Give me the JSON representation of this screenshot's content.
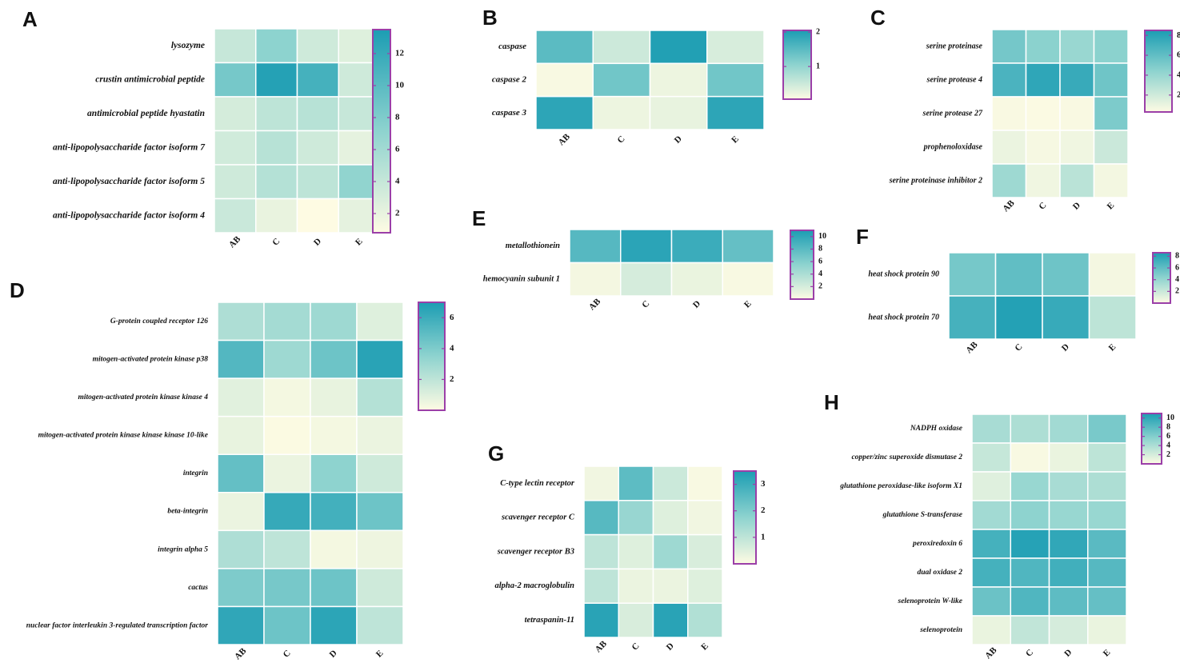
{
  "colors": {
    "low": "#fefbe3",
    "mid": "#8ed3cf",
    "high": "#1c9db3",
    "cell_border": "#ffffff",
    "legend_border": "#9b3fa8"
  },
  "chart_data": [
    {
      "panel": "A",
      "type": "heatmap",
      "categories": [
        "AB",
        "C",
        "D",
        "E"
      ],
      "rows": [
        "lysozyme",
        "crustin antimicrobial peptide",
        "antimicrobial peptide hyastatin",
        "anti-lipopolysaccharide factor isoform 7",
        "anti-lipopolysaccharide factor isoform 5",
        "anti-lipopolysaccharide factor isoform 4"
      ],
      "values": [
        [
          4.0,
          7.2,
          3.5,
          2.6
        ],
        [
          8.5,
          13.0,
          11.2,
          3.5
        ],
        [
          3.2,
          4.5,
          4.8,
          4.0
        ],
        [
          3.4,
          4.8,
          3.5,
          2.2
        ],
        [
          3.5,
          5.0,
          4.5,
          7.0
        ],
        [
          3.8,
          2.0,
          0.8,
          2.2
        ]
      ],
      "colorbar_ticks": [
        2,
        4,
        6,
        8,
        10,
        12
      ],
      "colorbar_range": [
        0.8,
        13.5
      ]
    },
    {
      "panel": "B",
      "type": "heatmap",
      "categories": [
        "AB",
        "C",
        "D",
        "E"
      ],
      "rows": [
        "caspase",
        "caspase 2",
        "caspase 3"
      ],
      "values": [
        [
          1.5,
          0.5,
          2.0,
          0.4
        ],
        [
          0.1,
          1.3,
          0.2,
          1.3
        ],
        [
          1.9,
          0.2,
          0.25,
          1.9
        ]
      ],
      "colorbar_ticks": [
        1,
        2
      ],
      "colorbar_range": [
        0.05,
        2.05
      ]
    },
    {
      "panel": "C",
      "type": "heatmap",
      "categories": [
        "AB",
        "C",
        "D",
        "E"
      ],
      "rows": [
        "serine proteinase",
        "serine protease 4",
        "serine protease 27",
        "prophenoloxidase",
        "serine proteinase inhibitor 2"
      ],
      "values": [
        [
          5.3,
          4.5,
          4.0,
          4.5
        ],
        [
          6.8,
          7.8,
          7.5,
          5.5
        ],
        [
          0.5,
          0.4,
          0.5,
          5.0
        ],
        [
          1.0,
          0.6,
          0.8,
          2.2
        ],
        [
          3.8,
          0.8,
          2.8,
          0.7
        ]
      ],
      "colorbar_ticks": [
        2,
        4,
        6,
        8
      ],
      "colorbar_range": [
        0.3,
        8.5
      ]
    },
    {
      "panel": "D",
      "type": "heatmap",
      "categories": [
        "AB",
        "C",
        "D",
        "E"
      ],
      "rows": [
        "G-protein coupled receptor 126",
        "mitogen-activated protein kinase p38",
        "mitogen-activated protein kinase kinase 4",
        "mitogen-activated protein kinase kinase kinase 10-like",
        "integrin",
        "beta-integrin",
        "integrin alpha 5",
        "cactus",
        "nuclear factor interleukin 3-regulated transcription factor"
      ],
      "values": [
        [
          2.5,
          2.8,
          3.0,
          1.0
        ],
        [
          5.3,
          3.0,
          4.5,
          6.6
        ],
        [
          0.9,
          0.3,
          0.7,
          2.3
        ],
        [
          0.7,
          0.1,
          0.3,
          0.6
        ],
        [
          4.8,
          0.6,
          3.5,
          1.5
        ],
        [
          0.6,
          6.2,
          5.8,
          4.5
        ],
        [
          2.5,
          2.0,
          0.3,
          0.5
        ],
        [
          4.0,
          4.2,
          4.5,
          1.5
        ],
        [
          6.4,
          4.5,
          6.5,
          2.0
        ]
      ],
      "colorbar_ticks": [
        2,
        4,
        6
      ],
      "colorbar_range": [
        0,
        7.0
      ]
    },
    {
      "panel": "E",
      "type": "heatmap",
      "categories": [
        "AB",
        "C",
        "D",
        "E"
      ],
      "rows": [
        "metallothionein",
        "hemocyanin subunit 1"
      ],
      "values": [
        [
          8.2,
          10.3,
          9.5,
          7.5
        ],
        [
          0.5,
          2.0,
          1.0,
          0.3
        ]
      ],
      "colorbar_ticks": [
        2,
        4,
        6,
        8,
        10
      ],
      "colorbar_range": [
        0,
        11.0
      ]
    },
    {
      "panel": "F",
      "type": "heatmap",
      "categories": [
        "AB",
        "C",
        "D",
        "E"
      ],
      "rows": [
        "heat shock protein 90",
        "heat shock protein 70"
      ],
      "values": [
        [
          5.2,
          6.0,
          5.5,
          0.4
        ],
        [
          7.0,
          8.3,
          7.6,
          2.5
        ]
      ],
      "colorbar_ticks": [
        2,
        4,
        6,
        8
      ],
      "colorbar_range": [
        0,
        8.6
      ]
    },
    {
      "panel": "G",
      "type": "heatmap",
      "categories": [
        "AB",
        "C",
        "D",
        "E"
      ],
      "rows": [
        "C-type lectin receptor",
        "scavenger receptor C",
        "scavenger receptor B3",
        "alpha-2 macroglobulin",
        "tetraspanin-11"
      ],
      "values": [
        [
          0.2,
          2.5,
          0.8,
          0.1
        ],
        [
          2.6,
          1.6,
          0.5,
          0.2
        ],
        [
          1.0,
          0.5,
          1.5,
          0.6
        ],
        [
          1.0,
          0.3,
          0.3,
          0.5
        ],
        [
          3.3,
          0.6,
          3.3,
          1.2
        ]
      ],
      "colorbar_ticks": [
        1,
        2,
        3
      ],
      "colorbar_range": [
        0,
        3.5
      ]
    },
    {
      "panel": "H",
      "type": "heatmap",
      "categories": [
        "AB",
        "C",
        "D",
        "E"
      ],
      "rows": [
        "NADPH oxidase",
        "copper/zinc superoxide dismutase 2",
        "glutathione peroxidase-like isoform X1",
        "glutathione S-transferase",
        "peroxiredoxin 6",
        "dual oxidase 2",
        "selenoprotein W-like",
        "selenoprotein"
      ],
      "values": [
        [
          4.2,
          4.0,
          4.5,
          6.5
        ],
        [
          2.8,
          0.3,
          1.0,
          3.2
        ],
        [
          1.5,
          5.0,
          4.2,
          4.0
        ],
        [
          4.5,
          5.5,
          5.0,
          5.0
        ],
        [
          9.0,
          10.5,
          10.0,
          8.0
        ],
        [
          9.0,
          8.5,
          9.2,
          8.2
        ],
        [
          7.2,
          8.5,
          7.8,
          7.5
        ],
        [
          1.0,
          3.0,
          2.0,
          1.0
        ]
      ],
      "colorbar_ticks": [
        2,
        4,
        6,
        8,
        10
      ],
      "colorbar_range": [
        0,
        11.0
      ]
    }
  ]
}
